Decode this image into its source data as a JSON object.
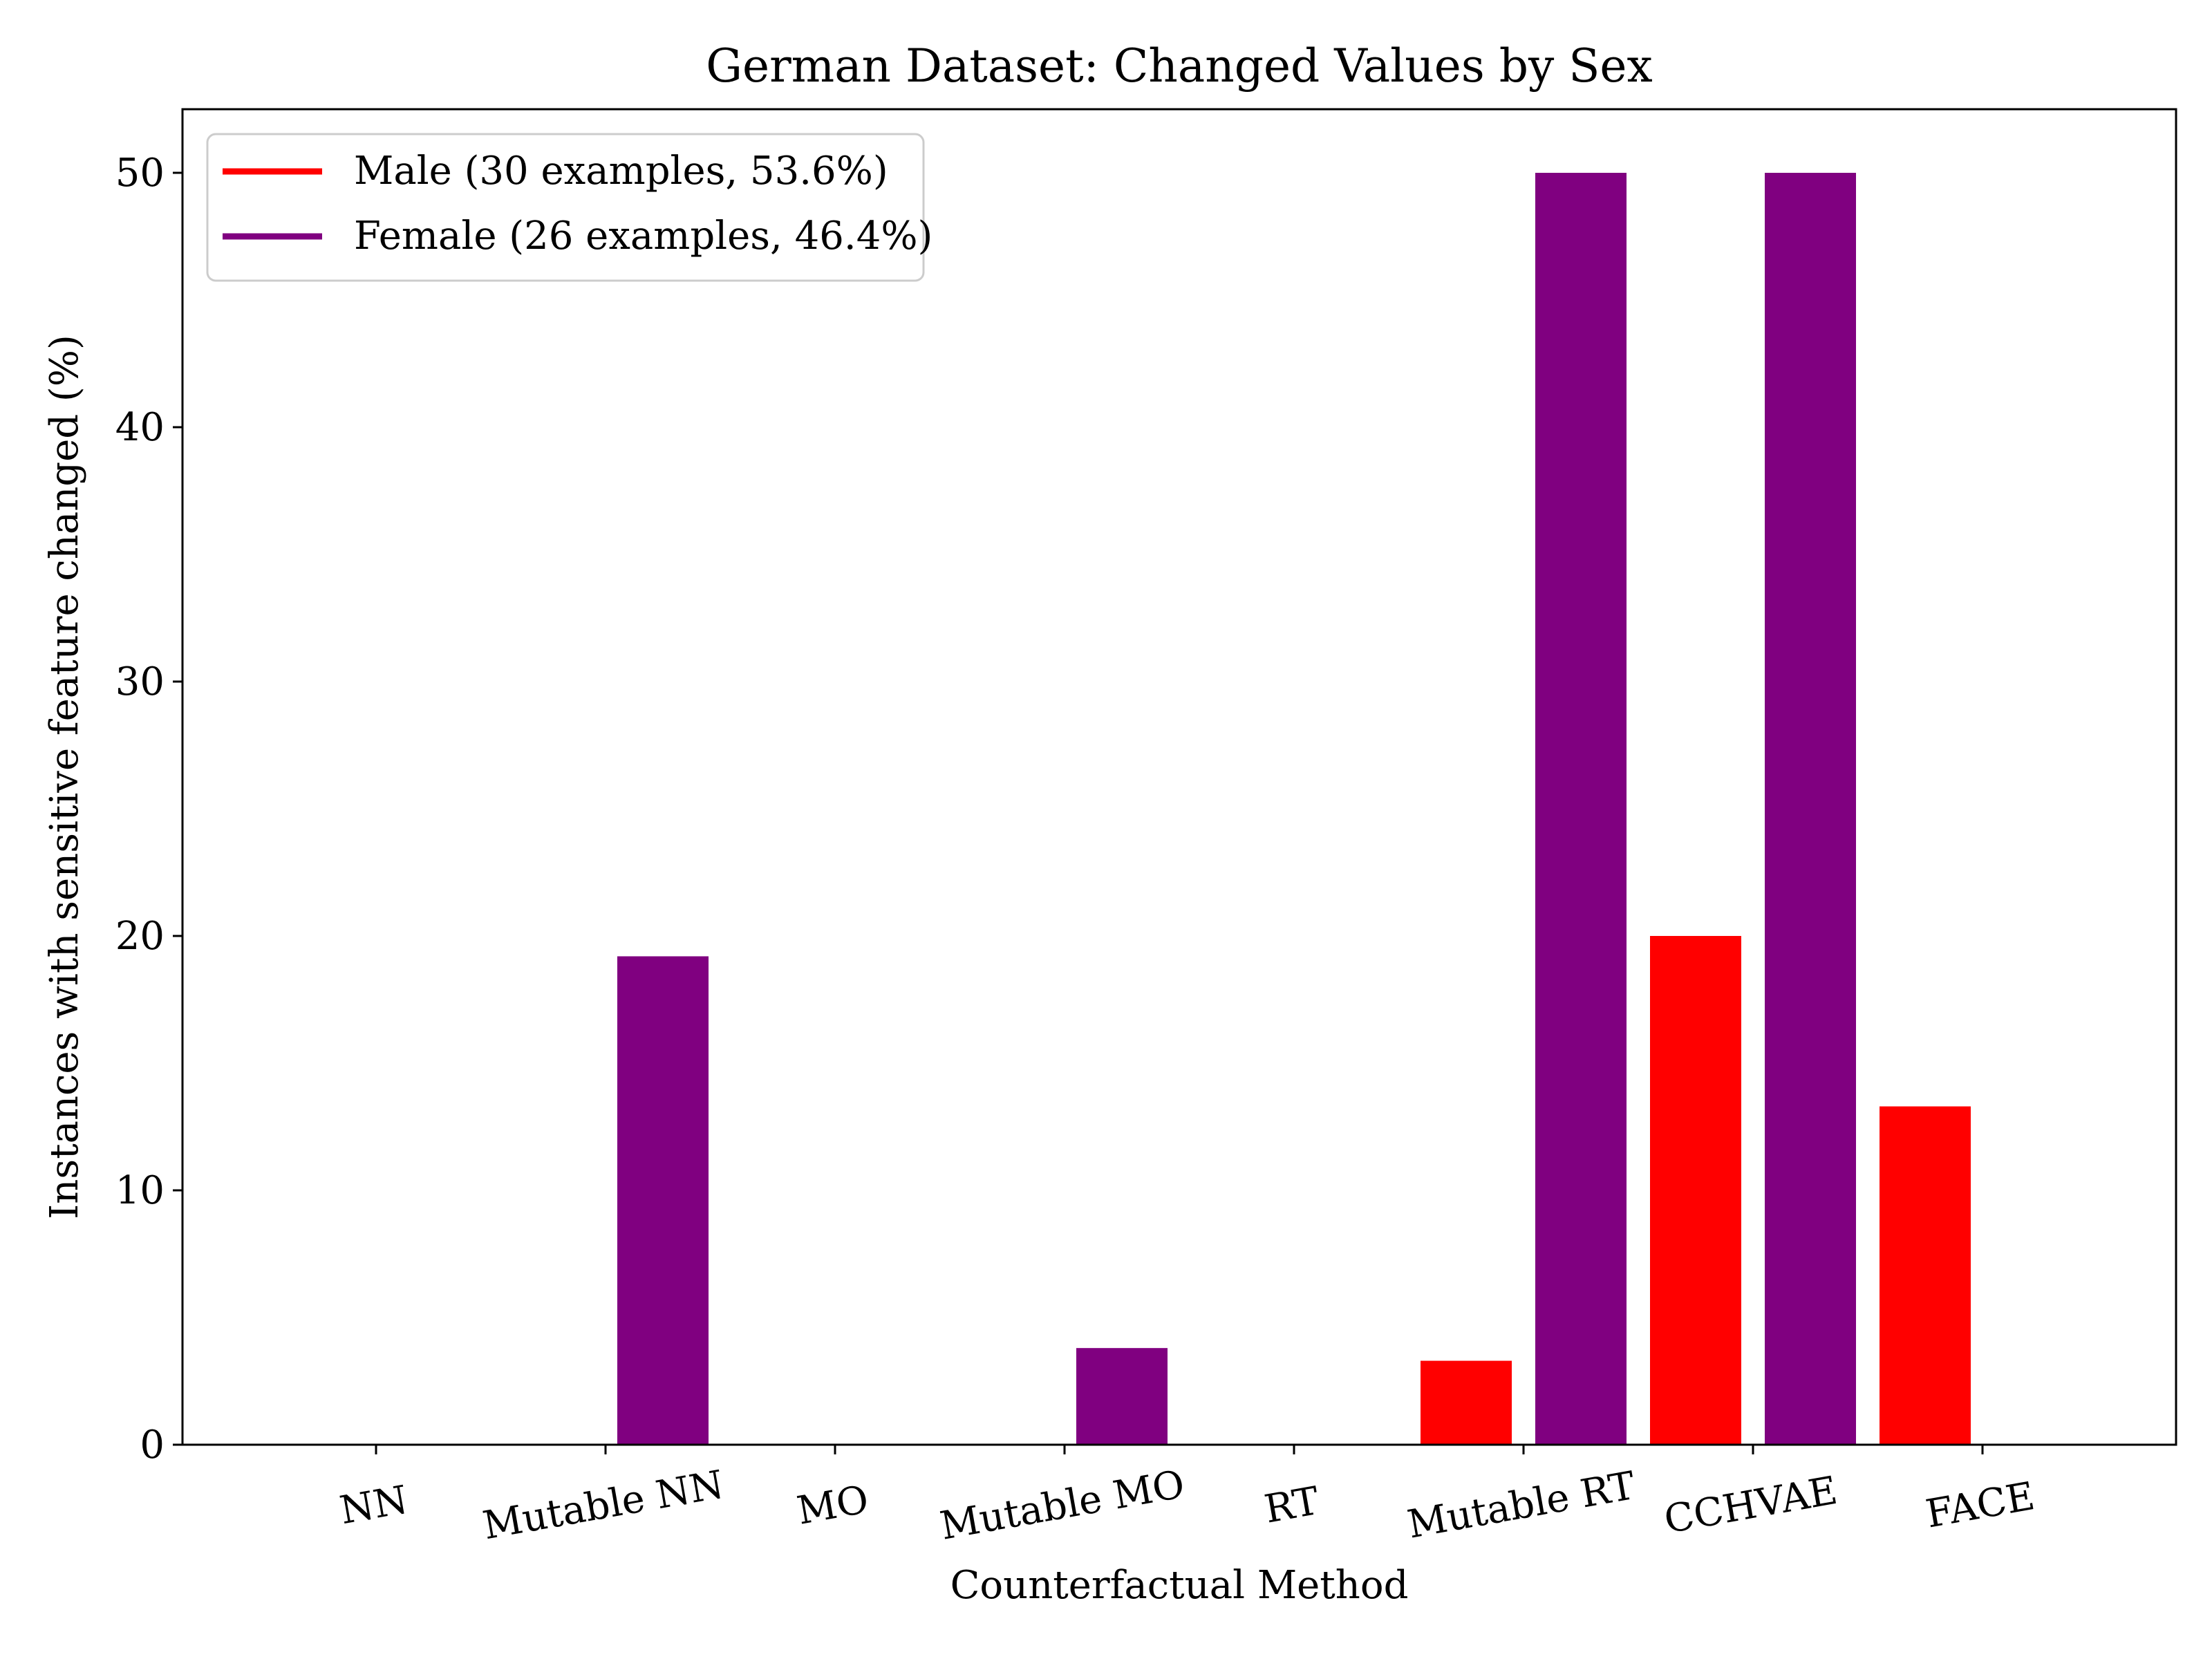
{
  "chart_data": {
    "type": "bar",
    "title": "German Dataset: Changed Values by Sex",
    "xlabel": "Counterfactual Method",
    "ylabel": "Instances with sensitive feature changed (%)",
    "ylim": [
      0,
      52.5
    ],
    "yticks": [
      0,
      10,
      20,
      30,
      40,
      50
    ],
    "categories": [
      "NN",
      "Mutable NN",
      "MO",
      "Mutable MO",
      "RT",
      "Mutable RT",
      "CCHVAE",
      "FACE"
    ],
    "series": [
      {
        "name": "Male (30 examples, 53.6%)",
        "color": "#ff0000",
        "values": [
          0,
          0,
          0,
          0,
          0,
          3.3,
          20.0,
          13.3
        ]
      },
      {
        "name": "Female (26 examples, 46.4%)",
        "color": "#800080",
        "values": [
          0,
          19.2,
          0,
          3.8,
          0,
          50.0,
          50.0,
          0
        ]
      }
    ],
    "legend_position": "top-left",
    "grid": false,
    "xtick_rotation": "slight"
  }
}
